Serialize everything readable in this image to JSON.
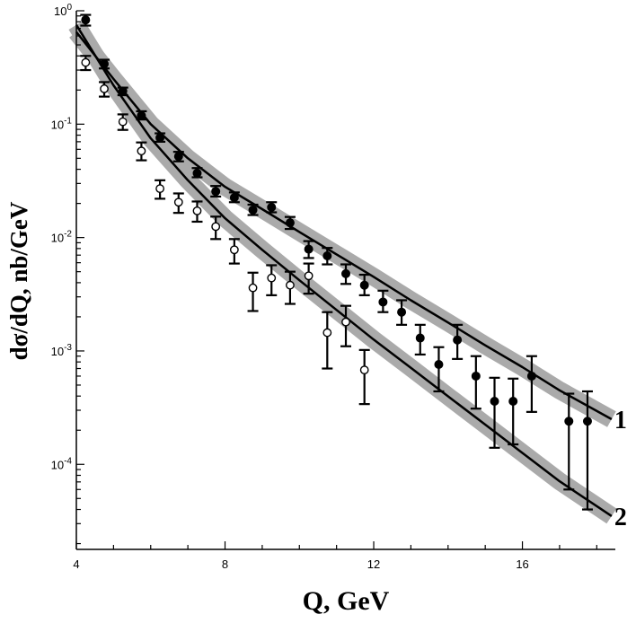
{
  "chart_data": {
    "type": "scatter",
    "title": "",
    "xlabel": "Q, GeV",
    "ylabel": "dσ/dQ, nb/GeV",
    "xlim": [
      4,
      18.5
    ],
    "ylim_log10": [
      -4.75,
      0
    ],
    "y_scale": "log",
    "x_ticks": [
      {
        "value": 4,
        "label": "4"
      },
      {
        "value": 8,
        "label": "8"
      },
      {
        "value": 12,
        "label": "12"
      },
      {
        "value": 16,
        "label": "16"
      }
    ],
    "y_ticks": [
      {
        "exp": 0,
        "base": "10",
        "sup": "0"
      },
      {
        "exp": -1,
        "base": "10",
        "sup": "-1"
      },
      {
        "exp": -2,
        "base": "10",
        "sup": "-2"
      },
      {
        "exp": -3,
        "base": "10",
        "sup": "-3"
      },
      {
        "exp": -4,
        "base": "10",
        "sup": "-4"
      }
    ],
    "grid": false,
    "series": [
      {
        "marker": "filled-circle",
        "points": [
          {
            "x": 4.25,
            "y": 0.83,
            "lo": 0.74,
            "hi": 0.92
          },
          {
            "x": 4.75,
            "y": 0.34,
            "lo": 0.31,
            "hi": 0.37
          },
          {
            "x": 5.25,
            "y": 0.196,
            "lo": 0.18,
            "hi": 0.21
          },
          {
            "x": 5.75,
            "y": 0.119,
            "lo": 0.11,
            "hi": 0.13
          },
          {
            "x": 6.25,
            "y": 0.076,
            "lo": 0.07,
            "hi": 0.083
          },
          {
            "x": 6.75,
            "y": 0.052,
            "lo": 0.047,
            "hi": 0.057
          },
          {
            "x": 7.25,
            "y": 0.037,
            "lo": 0.034,
            "hi": 0.041
          },
          {
            "x": 7.75,
            "y": 0.0255,
            "lo": 0.023,
            "hi": 0.0285
          },
          {
            "x": 8.25,
            "y": 0.0225,
            "lo": 0.0205,
            "hi": 0.025
          },
          {
            "x": 8.75,
            "y": 0.0175,
            "lo": 0.0158,
            "hi": 0.0195
          },
          {
            "x": 9.25,
            "y": 0.0185,
            "lo": 0.0167,
            "hi": 0.0205
          },
          {
            "x": 9.75,
            "y": 0.0135,
            "lo": 0.0119,
            "hi": 0.0152
          },
          {
            "x": 10.25,
            "y": 0.0079,
            "lo": 0.0066,
            "hi": 0.0093
          },
          {
            "x": 10.75,
            "y": 0.0069,
            "lo": 0.0058,
            "hi": 0.0081
          },
          {
            "x": 11.25,
            "y": 0.0048,
            "lo": 0.0039,
            "hi": 0.0058
          },
          {
            "x": 11.75,
            "y": 0.0038,
            "lo": 0.0031,
            "hi": 0.0047
          },
          {
            "x": 12.25,
            "y": 0.0027,
            "lo": 0.0022,
            "hi": 0.0034
          },
          {
            "x": 12.75,
            "y": 0.0022,
            "lo": 0.0017,
            "hi": 0.0028
          },
          {
            "x": 13.25,
            "y": 0.0013,
            "lo": 0.00093,
            "hi": 0.0017
          },
          {
            "x": 13.75,
            "y": 0.00076,
            "lo": 0.00044,
            "hi": 0.00108
          },
          {
            "x": 14.25,
            "y": 0.00125,
            "lo": 0.00085,
            "hi": 0.0017
          },
          {
            "x": 14.75,
            "y": 0.0006,
            "lo": 0.00031,
            "hi": 0.0009
          },
          {
            "x": 15.25,
            "y": 0.00036,
            "lo": 0.00014,
            "hi": 0.00058
          },
          {
            "x": 15.75,
            "y": 0.00036,
            "lo": 0.00015,
            "hi": 0.00057
          },
          {
            "x": 16.25,
            "y": 0.0006,
            "lo": 0.00029,
            "hi": 0.0009
          },
          {
            "x": 17.25,
            "y": 0.00024,
            "lo": 6e-05,
            "hi": 0.00042
          },
          {
            "x": 17.75,
            "y": 0.00024,
            "lo": 4e-05,
            "hi": 0.00044
          }
        ]
      },
      {
        "marker": "open-circle",
        "points": [
          {
            "x": 4.25,
            "y": 0.35,
            "lo": 0.3,
            "hi": 0.4
          },
          {
            "x": 4.75,
            "y": 0.205,
            "lo": 0.175,
            "hi": 0.235
          },
          {
            "x": 5.25,
            "y": 0.105,
            "lo": 0.089,
            "hi": 0.122
          },
          {
            "x": 5.75,
            "y": 0.058,
            "lo": 0.048,
            "hi": 0.069
          },
          {
            "x": 6.25,
            "y": 0.027,
            "lo": 0.022,
            "hi": 0.032
          },
          {
            "x": 6.75,
            "y": 0.0205,
            "lo": 0.0165,
            "hi": 0.0245
          },
          {
            "x": 7.25,
            "y": 0.0172,
            "lo": 0.0138,
            "hi": 0.0208
          },
          {
            "x": 7.75,
            "y": 0.0125,
            "lo": 0.0097,
            "hi": 0.0153
          },
          {
            "x": 8.25,
            "y": 0.0078,
            "lo": 0.0059,
            "hi": 0.0097
          },
          {
            "x": 8.75,
            "y": 0.0036,
            "lo": 0.00225,
            "hi": 0.0049
          },
          {
            "x": 9.25,
            "y": 0.0044,
            "lo": 0.0031,
            "hi": 0.0057
          },
          {
            "x": 9.75,
            "y": 0.0038,
            "lo": 0.0026,
            "hi": 0.005
          },
          {
            "x": 10.25,
            "y": 0.0046,
            "lo": 0.0032,
            "hi": 0.0059
          },
          {
            "x": 10.75,
            "y": 0.00145,
            "lo": 0.0007,
            "hi": 0.0022
          },
          {
            "x": 11.25,
            "y": 0.0018,
            "lo": 0.0011,
            "hi": 0.0025
          },
          {
            "x": 11.75,
            "y": 0.00068,
            "lo": 0.00034,
            "hi": 0.00102
          }
        ]
      }
    ],
    "curves": [
      {
        "label": "1",
        "band_color": "#aaaaaa",
        "points": [
          {
            "x": 4.0,
            "y": 0.65
          },
          {
            "x": 5.0,
            "y": 0.25
          },
          {
            "x": 6.0,
            "y": 0.1
          },
          {
            "x": 7.0,
            "y": 0.05
          },
          {
            "x": 8.0,
            "y": 0.028
          },
          {
            "x": 9.0,
            "y": 0.0178
          },
          {
            "x": 10.0,
            "y": 0.0112
          },
          {
            "x": 11.0,
            "y": 0.0071
          },
          {
            "x": 12.0,
            "y": 0.0045
          },
          {
            "x": 13.0,
            "y": 0.0028
          },
          {
            "x": 14.0,
            "y": 0.00178
          },
          {
            "x": 15.0,
            "y": 0.00112
          },
          {
            "x": 16.0,
            "y": 0.00072
          },
          {
            "x": 17.0,
            "y": 0.00045
          },
          {
            "x": 18.4,
            "y": 0.00025
          }
        ]
      },
      {
        "label": "2",
        "band_color": "#aaaaaa",
        "points": [
          {
            "x": 4.0,
            "y": 0.75
          },
          {
            "x": 5.0,
            "y": 0.22
          },
          {
            "x": 6.0,
            "y": 0.075
          },
          {
            "x": 7.0,
            "y": 0.032
          },
          {
            "x": 8.0,
            "y": 0.0148
          },
          {
            "x": 9.0,
            "y": 0.0078
          },
          {
            "x": 10.0,
            "y": 0.0042
          },
          {
            "x": 11.0,
            "y": 0.0023
          },
          {
            "x": 12.0,
            "y": 0.00126
          },
          {
            "x": 13.0,
            "y": 0.00071
          },
          {
            "x": 14.0,
            "y": 0.000398
          },
          {
            "x": 15.0,
            "y": 0.000224
          },
          {
            "x": 16.0,
            "y": 0.000126
          },
          {
            "x": 17.0,
            "y": 7.1e-05
          },
          {
            "x": 18.4,
            "y": 3.5e-05
          }
        ]
      }
    ]
  }
}
